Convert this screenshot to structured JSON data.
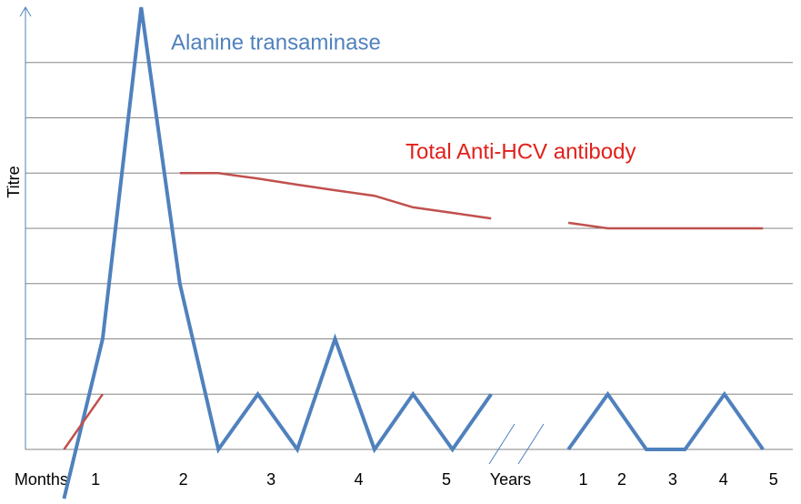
{
  "chart_data": {
    "type": "line",
    "ylabel": "Titre",
    "x": [
      0.64,
      1.08,
      1.52,
      1.96,
      2.4,
      2.85,
      3.3,
      3.73,
      4.18,
      4.62,
      5.07,
      5.51,
      5.95,
      6.39,
      6.84,
      7.28,
      7.72,
      8.17,
      8.61
    ],
    "xlim": [
      0.2,
      8.95
    ],
    "xticks": [
      {
        "value": 0.38,
        "label": "Months"
      },
      1,
      2,
      3,
      4,
      5,
      {
        "value": 5.73,
        "label": "Years"
      },
      {
        "value": 6.56,
        "label": "1"
      },
      {
        "value": 7.0,
        "label": "2"
      },
      {
        "value": 7.58,
        "label": "3"
      },
      {
        "value": 8.16,
        "label": "4"
      },
      {
        "value": 8.73,
        "label": "5"
      }
    ],
    "ylim": [
      0,
      8
    ],
    "yticks": [
      0,
      1,
      2,
      3,
      4,
      5,
      6,
      7
    ],
    "show_ytick_labels": false,
    "grid": true,
    "series": [
      {
        "name": "Alanine transaminase",
        "color": "#4f81bd",
        "values": [
          -0.89,
          2,
          8,
          3,
          0,
          1,
          0,
          2,
          0,
          1,
          0,
          1,
          null,
          0,
          1,
          0,
          0,
          1,
          0
        ]
      },
      {
        "name": "Total Anti-HCV antibody",
        "color": "#c0504d",
        "values": [
          0,
          1,
          null,
          5,
          5,
          4.9,
          4.79,
          4.69,
          4.59,
          4.38,
          4.28,
          4.18,
          null,
          4.1,
          4,
          4,
          4,
          4,
          4
        ]
      }
    ]
  }
}
